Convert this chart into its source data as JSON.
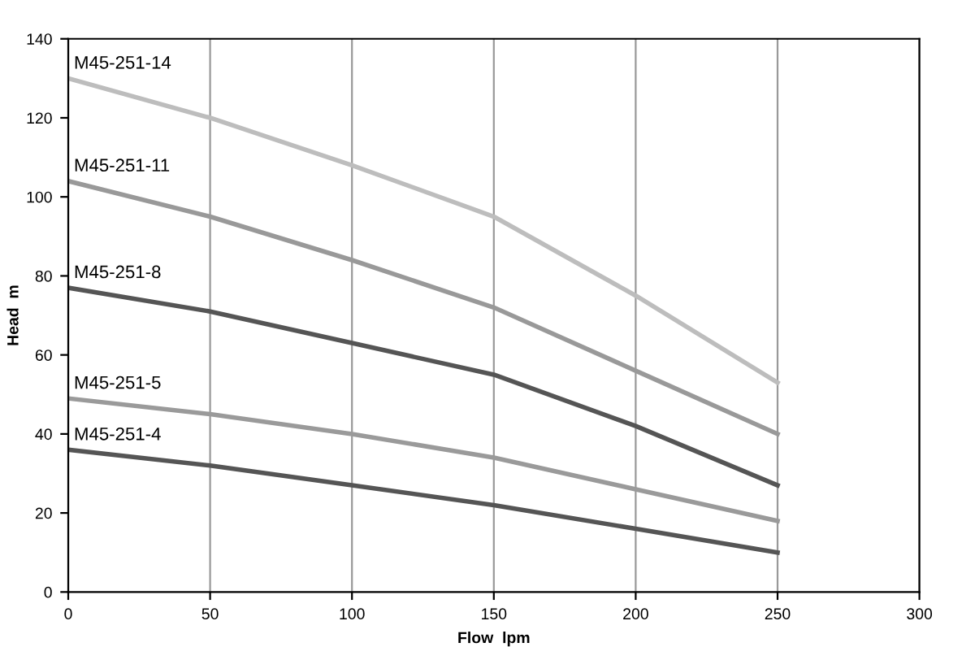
{
  "chart_data": {
    "type": "line",
    "xlabel": "Flow  lpm",
    "ylabel": "Head  m",
    "x": [
      0,
      50,
      100,
      150,
      200,
      250
    ],
    "series": [
      {
        "name": "M45-251-14",
        "color": "#bdbdbd",
        "values": [
          130,
          120,
          108,
          95,
          75,
          53
        ]
      },
      {
        "name": "M45-251-11",
        "color": "#999999",
        "values": [
          104,
          95,
          84,
          72,
          56,
          40
        ]
      },
      {
        "name": "M45-251-8",
        "color": "#555555",
        "values": [
          77,
          71,
          63,
          55,
          42,
          27
        ]
      },
      {
        "name": "M45-251-5",
        "color": "#9a9a9a",
        "values": [
          49,
          45,
          40,
          34,
          26,
          18
        ]
      },
      {
        "name": "M45-251-4",
        "color": "#555555",
        "values": [
          36,
          32,
          27,
          22,
          16,
          10
        ]
      }
    ],
    "xlim": [
      0,
      300
    ],
    "xticks": [
      0,
      50,
      100,
      150,
      200,
      250,
      300
    ],
    "ylim": [
      0,
      140
    ],
    "yticks": [
      0,
      20,
      40,
      60,
      80,
      100,
      120,
      140
    ],
    "grid": "x",
    "legend": false,
    "marker": "none",
    "line_style": "solid"
  }
}
